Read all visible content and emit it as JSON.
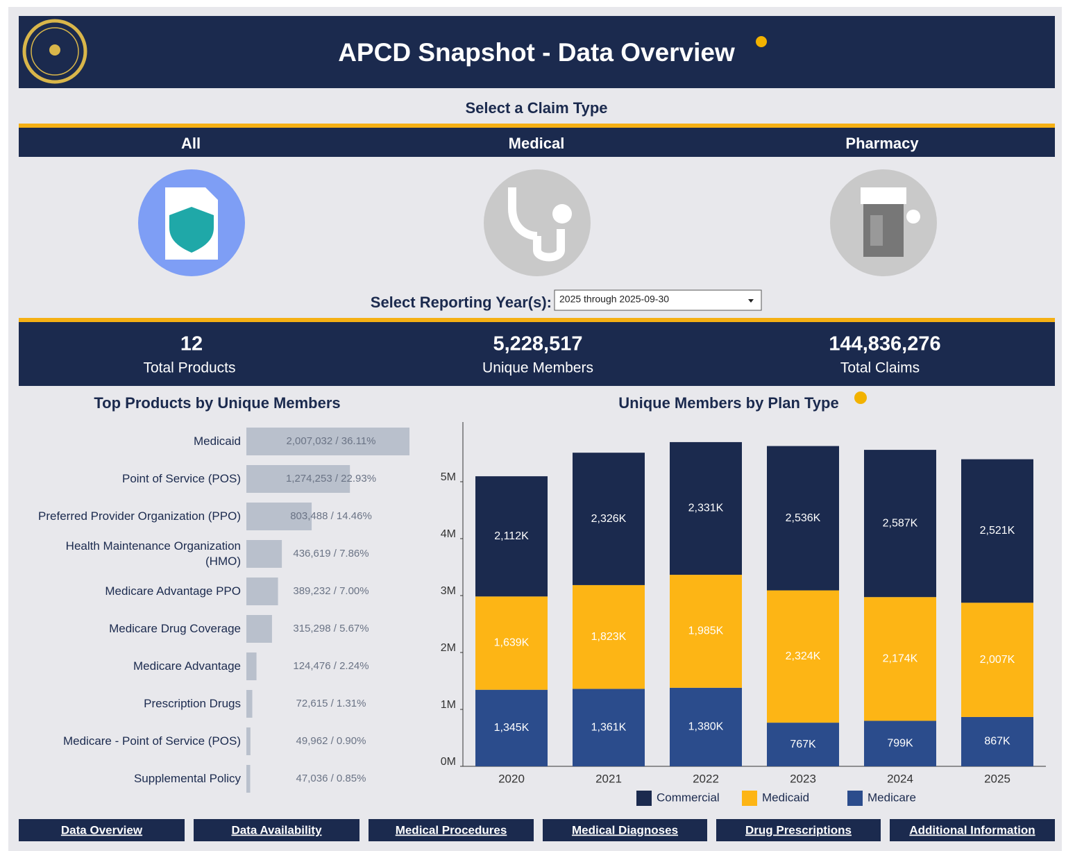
{
  "header": {
    "title": "APCD Snapshot - Data Overview"
  },
  "claim_type": {
    "label": "Select a Claim Type",
    "options": [
      "All",
      "Medical",
      "Pharmacy"
    ]
  },
  "reporting_year": {
    "label": "Select Reporting Year(s):",
    "value": "2025 through 2025-09-30"
  },
  "kpis": [
    {
      "value": "12",
      "label": "Total Products"
    },
    {
      "value": "5,228,517",
      "label": "Unique Members"
    },
    {
      "value": "144,836,276",
      "label": "Total Claims"
    }
  ],
  "chart_data": [
    {
      "type": "hbar",
      "title": "Top Products by Unique Members",
      "color": "#b9c0cc",
      "categories": [
        "Medicaid",
        "Point of Service (POS)",
        "Preferred Provider Organization (PPO)",
        "Health Maintenance Organization (HMO)",
        "Medicare Advantage PPO",
        "Medicare Drug Coverage",
        "Medicare Advantage",
        "Prescription Drugs",
        "Medicare - Point of Service (POS)",
        "Supplemental Policy"
      ],
      "values": [
        2007032,
        1274253,
        803488,
        436619,
        389232,
        315298,
        124476,
        72615,
        49962,
        47036
      ],
      "value_labels": [
        "2,007,032 / 36.11%",
        "1,274,253 / 22.93%",
        "803,488 / 14.46%",
        "436,619 / 7.86%",
        "389,232 / 7.00%",
        "315,298 / 5.67%",
        "124,476 / 2.24%",
        "72,615 / 1.31%",
        "49,962 / 0.90%",
        "47,036 / 0.85%"
      ]
    },
    {
      "type": "stacked_bar",
      "title": "Unique Members by Plan Type",
      "categories": [
        "2020",
        "2021",
        "2022",
        "2023",
        "2024",
        "2025"
      ],
      "ylim": [
        0,
        6000000
      ],
      "yticks": [
        {
          "value": 0,
          "label": "0M"
        },
        {
          "value": 1000000,
          "label": "1M"
        },
        {
          "value": 2000000,
          "label": "2M"
        },
        {
          "value": 3000000,
          "label": "3M"
        },
        {
          "value": 4000000,
          "label": "4M"
        },
        {
          "value": 5000000,
          "label": "5M"
        }
      ],
      "series": [
        {
          "name": "Commercial",
          "color": "#1b2a4e",
          "values": [
            2112000,
            2326000,
            2331000,
            2536000,
            2587000,
            2521000
          ],
          "value_labels": [
            "2,112K",
            "2,326K",
            "2,331K",
            "2,536K",
            "2,587K",
            "2,521K"
          ]
        },
        {
          "name": "Medicaid",
          "color": "#fdb515",
          "values": [
            1639000,
            1823000,
            1985000,
            2324000,
            2174000,
            2007000
          ],
          "value_labels": [
            "1,639K",
            "1,823K",
            "1,985K",
            "2,324K",
            "2,174K",
            "2,007K"
          ]
        },
        {
          "name": "Medicare",
          "color": "#2b4c8c",
          "values": [
            1345000,
            1361000,
            1380000,
            767000,
            799000,
            867000
          ],
          "value_labels": [
            "1,345K",
            "1,361K",
            "1,380K",
            "767K",
            "799K",
            "867K"
          ]
        }
      ]
    }
  ],
  "nav": [
    "Data Overview",
    "Data Availability",
    "Medical Procedures",
    "Medical Diagnoses",
    "Drug Prescriptions",
    "Additional Information"
  ]
}
